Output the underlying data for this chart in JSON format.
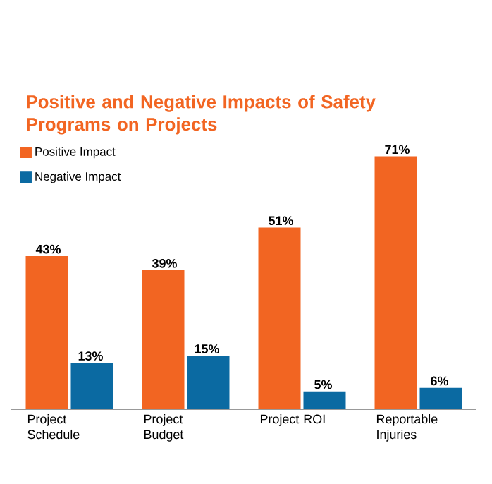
{
  "chart_data": {
    "type": "bar",
    "title": "Positive and Negative Impacts of Safety Programs on Projects",
    "categories": [
      "Project Schedule",
      "Project Budget",
      "Project ROI",
      "Reportable Injuries"
    ],
    "series": [
      {
        "name": "Positive Impact",
        "color": "#f26522",
        "values": [
          43,
          39,
          51,
          71
        ],
        "value_labels": [
          "43%",
          "39%",
          "51%",
          "71%"
        ]
      },
      {
        "name": "Negative Impact",
        "color": "#0b6aa2",
        "values": [
          13,
          15,
          5,
          6
        ],
        "value_labels": [
          "13%",
          "15%",
          "5%",
          "6%"
        ]
      }
    ],
    "legend": "top left"
  }
}
